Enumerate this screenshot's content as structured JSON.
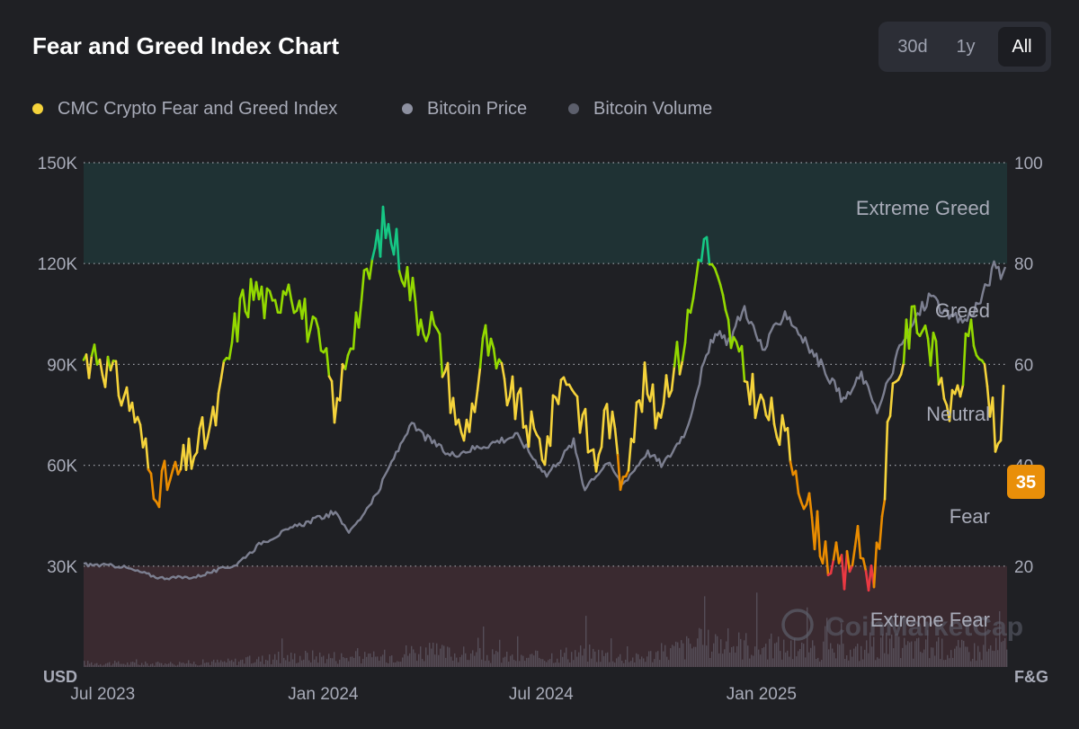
{
  "title": "Fear and Greed Index Chart",
  "range_toggle": {
    "options": [
      "30d",
      "1y",
      "All"
    ],
    "selected": "All"
  },
  "legend": [
    {
      "label": "CMC Crypto Fear and Greed Index",
      "color": "#f5d33b"
    },
    {
      "label": "Bitcoin Price",
      "color": "#8d90a0"
    },
    {
      "label": "Bitcoin Volume",
      "color": "#5c5f6c"
    }
  ],
  "watermark": "CoinMarketCap",
  "chart_data": {
    "type": "line",
    "x_ticks": [
      "Jul 2023",
      "Jan 2024",
      "Jul 2024",
      "Jan 2025"
    ],
    "x_range": [
      "2023-06-15",
      "2025-07-25"
    ],
    "left_axis": {
      "unit": "USD",
      "ticks": [
        "30K",
        "60K",
        "90K",
        "120K",
        "150K"
      ],
      "range": [
        0,
        150000
      ]
    },
    "right_axis": {
      "unit": "F&G",
      "ticks": [
        "20",
        "40",
        "60",
        "80",
        "100"
      ],
      "range": [
        0,
        100
      ]
    },
    "zones": [
      {
        "name": "Extreme Fear",
        "from": 0,
        "to": 20,
        "color": "#3a2a30"
      },
      {
        "name": "Fear",
        "from": 20,
        "to": 40
      },
      {
        "name": "Neutral",
        "from": 40,
        "to": 60
      },
      {
        "name": "Greed",
        "from": 60,
        "to": 80
      },
      {
        "name": "Extreme Greed",
        "from": 80,
        "to": 100,
        "color": "#1f3234"
      }
    ],
    "current_value": "35",
    "current_color": "#e98f09",
    "series": [
      {
        "name": "CMC Crypto Fear and Greed Index",
        "axis": "right",
        "x": [
          "2023-06-15",
          "2023-06-25",
          "2023-07-10",
          "2023-07-25",
          "2023-08-10",
          "2023-08-17",
          "2023-09-01",
          "2023-09-15",
          "2023-10-01",
          "2023-10-15",
          "2023-10-25",
          "2023-11-05",
          "2023-11-20",
          "2023-12-01",
          "2023-12-15",
          "2023-12-25",
          "2024-01-05",
          "2024-01-12",
          "2024-01-20",
          "2024-02-01",
          "2024-02-10",
          "2024-02-20",
          "2024-03-01",
          "2024-03-10",
          "2024-03-20",
          "2024-04-01",
          "2024-04-15",
          "2024-04-25",
          "2024-05-05",
          "2024-05-15",
          "2024-05-25",
          "2024-06-05",
          "2024-06-15",
          "2024-06-25",
          "2024-07-05",
          "2024-07-15",
          "2024-07-25",
          "2024-08-05",
          "2024-08-15",
          "2024-08-25",
          "2024-09-05",
          "2024-09-15",
          "2024-09-25",
          "2024-10-05",
          "2024-10-15",
          "2024-10-25",
          "2024-11-05",
          "2024-11-12",
          "2024-11-22",
          "2024-12-05",
          "2024-12-17",
          "2024-12-30",
          "2025-01-10",
          "2025-01-20",
          "2025-02-01",
          "2025-02-10",
          "2025-02-25",
          "2025-03-05",
          "2025-03-10",
          "2025-03-20",
          "2025-04-01",
          "2025-04-08",
          "2025-04-15",
          "2025-04-22",
          "2025-05-01",
          "2025-05-10",
          "2025-05-20",
          "2025-06-01",
          "2025-06-10",
          "2025-06-20",
          "2025-06-25",
          "2025-07-01",
          "2025-07-10",
          "2025-07-15",
          "2025-07-18",
          "2025-07-22",
          "2025-07-25"
        ],
        "values": [
          61,
          63,
          57,
          52,
          38,
          36,
          38,
          43,
          48,
          63,
          72,
          75,
          70,
          78,
          70,
          65,
          58,
          50,
          63,
          72,
          80,
          88,
          84,
          78,
          70,
          68,
          56,
          45,
          52,
          65,
          58,
          54,
          50,
          45,
          43,
          56,
          58,
          48,
          40,
          52,
          38,
          47,
          56,
          50,
          58,
          62,
          74,
          86,
          78,
          66,
          58,
          52,
          49,
          45,
          38,
          30,
          22,
          20,
          17,
          25,
          18,
          22,
          44,
          55,
          65,
          70,
          66,
          55,
          50,
          62,
          70,
          60,
          52,
          45,
          38,
          60,
          35
        ]
      },
      {
        "name": "Bitcoin Price",
        "axis": "left",
        "x": [
          "2023-06-15",
          "2023-07-15",
          "2023-08-17",
          "2023-09-15",
          "2023-10-20",
          "2023-11-10",
          "2023-12-10",
          "2024-01-10",
          "2024-01-23",
          "2024-02-15",
          "2024-03-13",
          "2024-04-15",
          "2024-05-15",
          "2024-06-10",
          "2024-07-05",
          "2024-07-28",
          "2024-08-05",
          "2024-08-25",
          "2024-09-06",
          "2024-09-27",
          "2024-10-10",
          "2024-10-29",
          "2024-11-12",
          "2024-11-22",
          "2024-12-05",
          "2024-12-17",
          "2025-01-02",
          "2025-01-20",
          "2025-02-05",
          "2025-02-25",
          "2025-03-10",
          "2025-03-25",
          "2025-04-08",
          "2025-04-25",
          "2025-05-10",
          "2025-05-22",
          "2025-06-05",
          "2025-06-20",
          "2025-07-02",
          "2025-07-12",
          "2025-07-15",
          "2025-07-18",
          "2025-07-25"
        ],
        "values": [
          30500,
          30000,
          26500,
          26700,
          30500,
          37000,
          42000,
          46000,
          40000,
          52000,
          72000,
          63000,
          66000,
          69000,
          57000,
          67000,
          53000,
          61000,
          54000,
          64000,
          60000,
          70000,
          88000,
          99000,
          97000,
          107000,
          94000,
          106000,
          97000,
          87000,
          79000,
          87000,
          76000,
          94000,
          104000,
          111000,
          104000,
          103000,
          109000,
          117000,
          120000,
          117000,
          117000
        ]
      }
    ],
    "volume_series": {
      "name": "Bitcoin Volume",
      "axis": "left",
      "x": [
        "2023-06-15",
        "2023-08-15",
        "2023-10-15",
        "2023-12-15",
        "2024-02-15",
        "2024-03-15",
        "2024-04-15",
        "2024-06-15",
        "2024-08-05",
        "2024-09-15",
        "2024-11-12",
        "2024-12-15",
        "2025-02-01",
        "2025-03-15",
        "2025-04-08",
        "2025-05-15",
        "2025-07-01",
        "2025-07-25"
      ],
      "values": [
        1500,
        1200,
        2000,
        4000,
        3500,
        6000,
        5000,
        3200,
        5500,
        3000,
        9000,
        8500,
        6500,
        5000,
        8000,
        7000,
        6000,
        7500
      ]
    }
  }
}
